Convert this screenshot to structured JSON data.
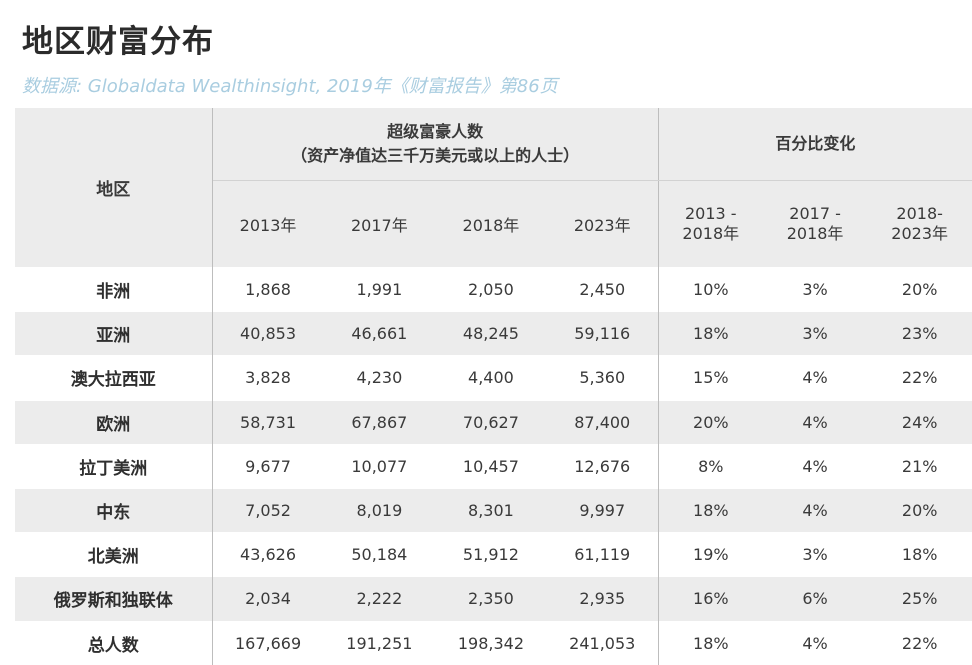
{
  "title": "地区财富分布",
  "source": "数据源: Globaldata Wealthinsight, 2019年《财富报告》第86页",
  "table": {
    "region_header": "地区",
    "group1_line1": "超级富豪人数",
    "group1_line2": "（资产净值达三千万美元或以上的人士）",
    "group2_header": "百分比变化",
    "year_headers": [
      "2013年",
      "2017年",
      "2018年",
      "2023年"
    ],
    "pct_headers": [
      {
        "line1": "2013 -",
        "line2": "2018年"
      },
      {
        "line1": "2017 -",
        "line2": "2018年"
      },
      {
        "line1": "2018-",
        "line2": "2023年"
      }
    ],
    "rows": [
      {
        "region": "非洲",
        "values": [
          "1,868",
          "1,991",
          "2,050",
          "2,450"
        ],
        "pct": [
          "10%",
          "3%",
          "20%"
        ]
      },
      {
        "region": "亚洲",
        "values": [
          "40,853",
          "46,661",
          "48,245",
          "59,116"
        ],
        "pct": [
          "18%",
          "3%",
          "23%"
        ]
      },
      {
        "region": "澳大拉西亚",
        "values": [
          "3,828",
          "4,230",
          "4,400",
          "5,360"
        ],
        "pct": [
          "15%",
          "4%",
          "22%"
        ]
      },
      {
        "region": "欧洲",
        "values": [
          "58,731",
          "67,867",
          "70,627",
          "87,400"
        ],
        "pct": [
          "20%",
          "4%",
          "24%"
        ]
      },
      {
        "region": "拉丁美洲",
        "values": [
          "9,677",
          "10,077",
          "10,457",
          "12,676"
        ],
        "pct": [
          "8%",
          "4%",
          "21%"
        ]
      },
      {
        "region": "中东",
        "values": [
          "7,052",
          "8,019",
          "8,301",
          "9,997"
        ],
        "pct": [
          "18%",
          "4%",
          "20%"
        ]
      },
      {
        "region": "北美洲",
        "values": [
          "43,626",
          "50,184",
          "51,912",
          "61,119"
        ],
        "pct": [
          "19%",
          "3%",
          "18%"
        ]
      },
      {
        "region": "俄罗斯和独联体",
        "values": [
          "2,034",
          "2,222",
          "2,350",
          "2,935"
        ],
        "pct": [
          "16%",
          "6%",
          "25%"
        ]
      },
      {
        "region": "总人数",
        "values": [
          "167,669",
          "191,251",
          "198,342",
          "241,053"
        ],
        "pct": [
          "18%",
          "4%",
          "22%"
        ]
      }
    ]
  }
}
